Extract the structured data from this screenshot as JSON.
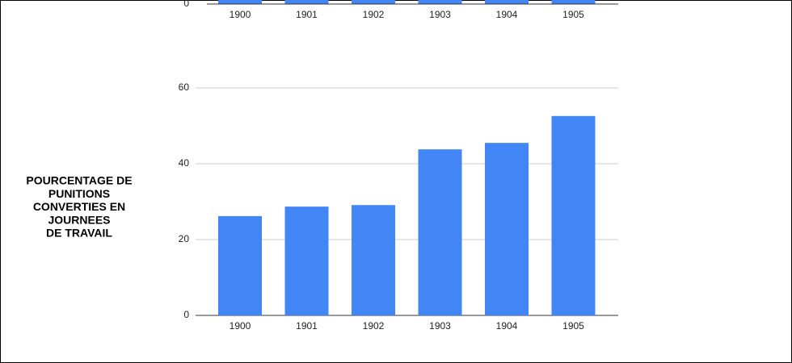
{
  "chart_data": [
    {
      "type": "bar",
      "categories": [
        "1900",
        "1901",
        "1902",
        "1903",
        "1904",
        "1905"
      ],
      "yticks": [
        0
      ],
      "color": "#4285f4"
    },
    {
      "type": "bar",
      "ylabel": [
        "POURCENTAGE DE",
        "PUNITIONS",
        "CONVERTIES EN",
        "JOURNEES",
        "DE TRAVAIL"
      ],
      "categories": [
        "1900",
        "1901",
        "1902",
        "1903",
        "1904",
        "1905"
      ],
      "values": [
        26.2,
        28.7,
        29.1,
        43.8,
        45.5,
        52.6
      ],
      "color": "#4285f4",
      "ylim": [
        0,
        60
      ],
      "yticks": [
        0,
        20,
        40,
        60
      ],
      "grid": true
    }
  ]
}
